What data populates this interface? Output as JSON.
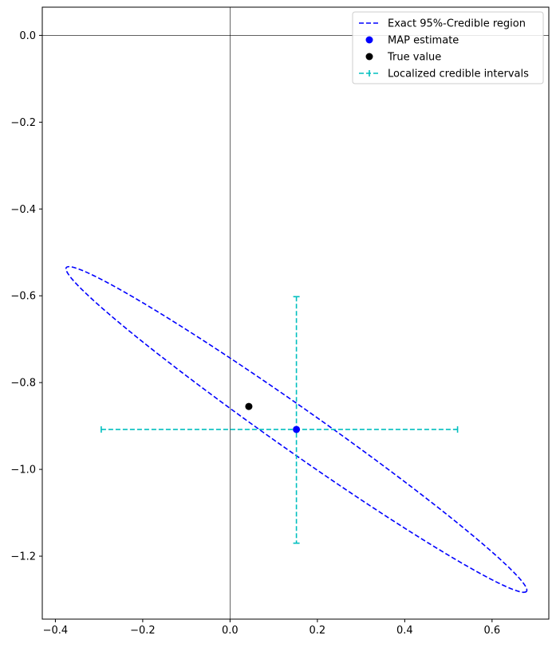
{
  "chart_data": {
    "type": "scatter",
    "title": "",
    "xlabel": "",
    "ylabel": "",
    "xlim": [
      -0.43,
      0.73
    ],
    "ylim": [
      -1.345,
      0.065
    ],
    "x_ticks": [
      -0.4,
      -0.2,
      0.0,
      0.2,
      0.4,
      0.6
    ],
    "y_ticks": [
      0.0,
      -0.2,
      -0.4,
      -0.6,
      -0.8,
      -1.0,
      -1.2
    ],
    "x_tick_labels": [
      "−0.4",
      "−0.2",
      "0.0",
      "0.2",
      "0.4",
      "0.6"
    ],
    "y_tick_labels": [
      "0.0",
      "−0.2",
      "−0.4",
      "−0.6",
      "−0.8",
      "−1.0",
      "−1.2"
    ],
    "grid": false,
    "reference_lines": {
      "x": 0.0,
      "y": 0.0,
      "color": "#000000"
    },
    "legend_position": "top-right",
    "colors": {
      "region": "#0000ff",
      "map": "#0000ff",
      "true_value": "#000000",
      "intervals": "#00bfbf",
      "spines": "#000000"
    },
    "series": [
      {
        "name": "Exact 95%-Credible region",
        "kind": "ellipse",
        "style": "dashed",
        "center": [
          0.152,
          -0.908
        ],
        "extreme_points": {
          "upper_left": [
            -0.375,
            -0.535
          ],
          "lower_right": [
            0.679,
            -1.281
          ]
        }
      },
      {
        "name": "MAP estimate",
        "kind": "point",
        "x": 0.152,
        "y": -0.908
      },
      {
        "name": "True value",
        "kind": "point",
        "x": 0.043,
        "y": -0.855
      },
      {
        "name": "Localized credible intervals",
        "kind": "errorbar",
        "style": "dashed",
        "x": 0.152,
        "y": -0.908,
        "x_interval": [
          -0.295,
          0.521
        ],
        "y_interval": [
          -1.17,
          -0.602
        ]
      }
    ]
  }
}
